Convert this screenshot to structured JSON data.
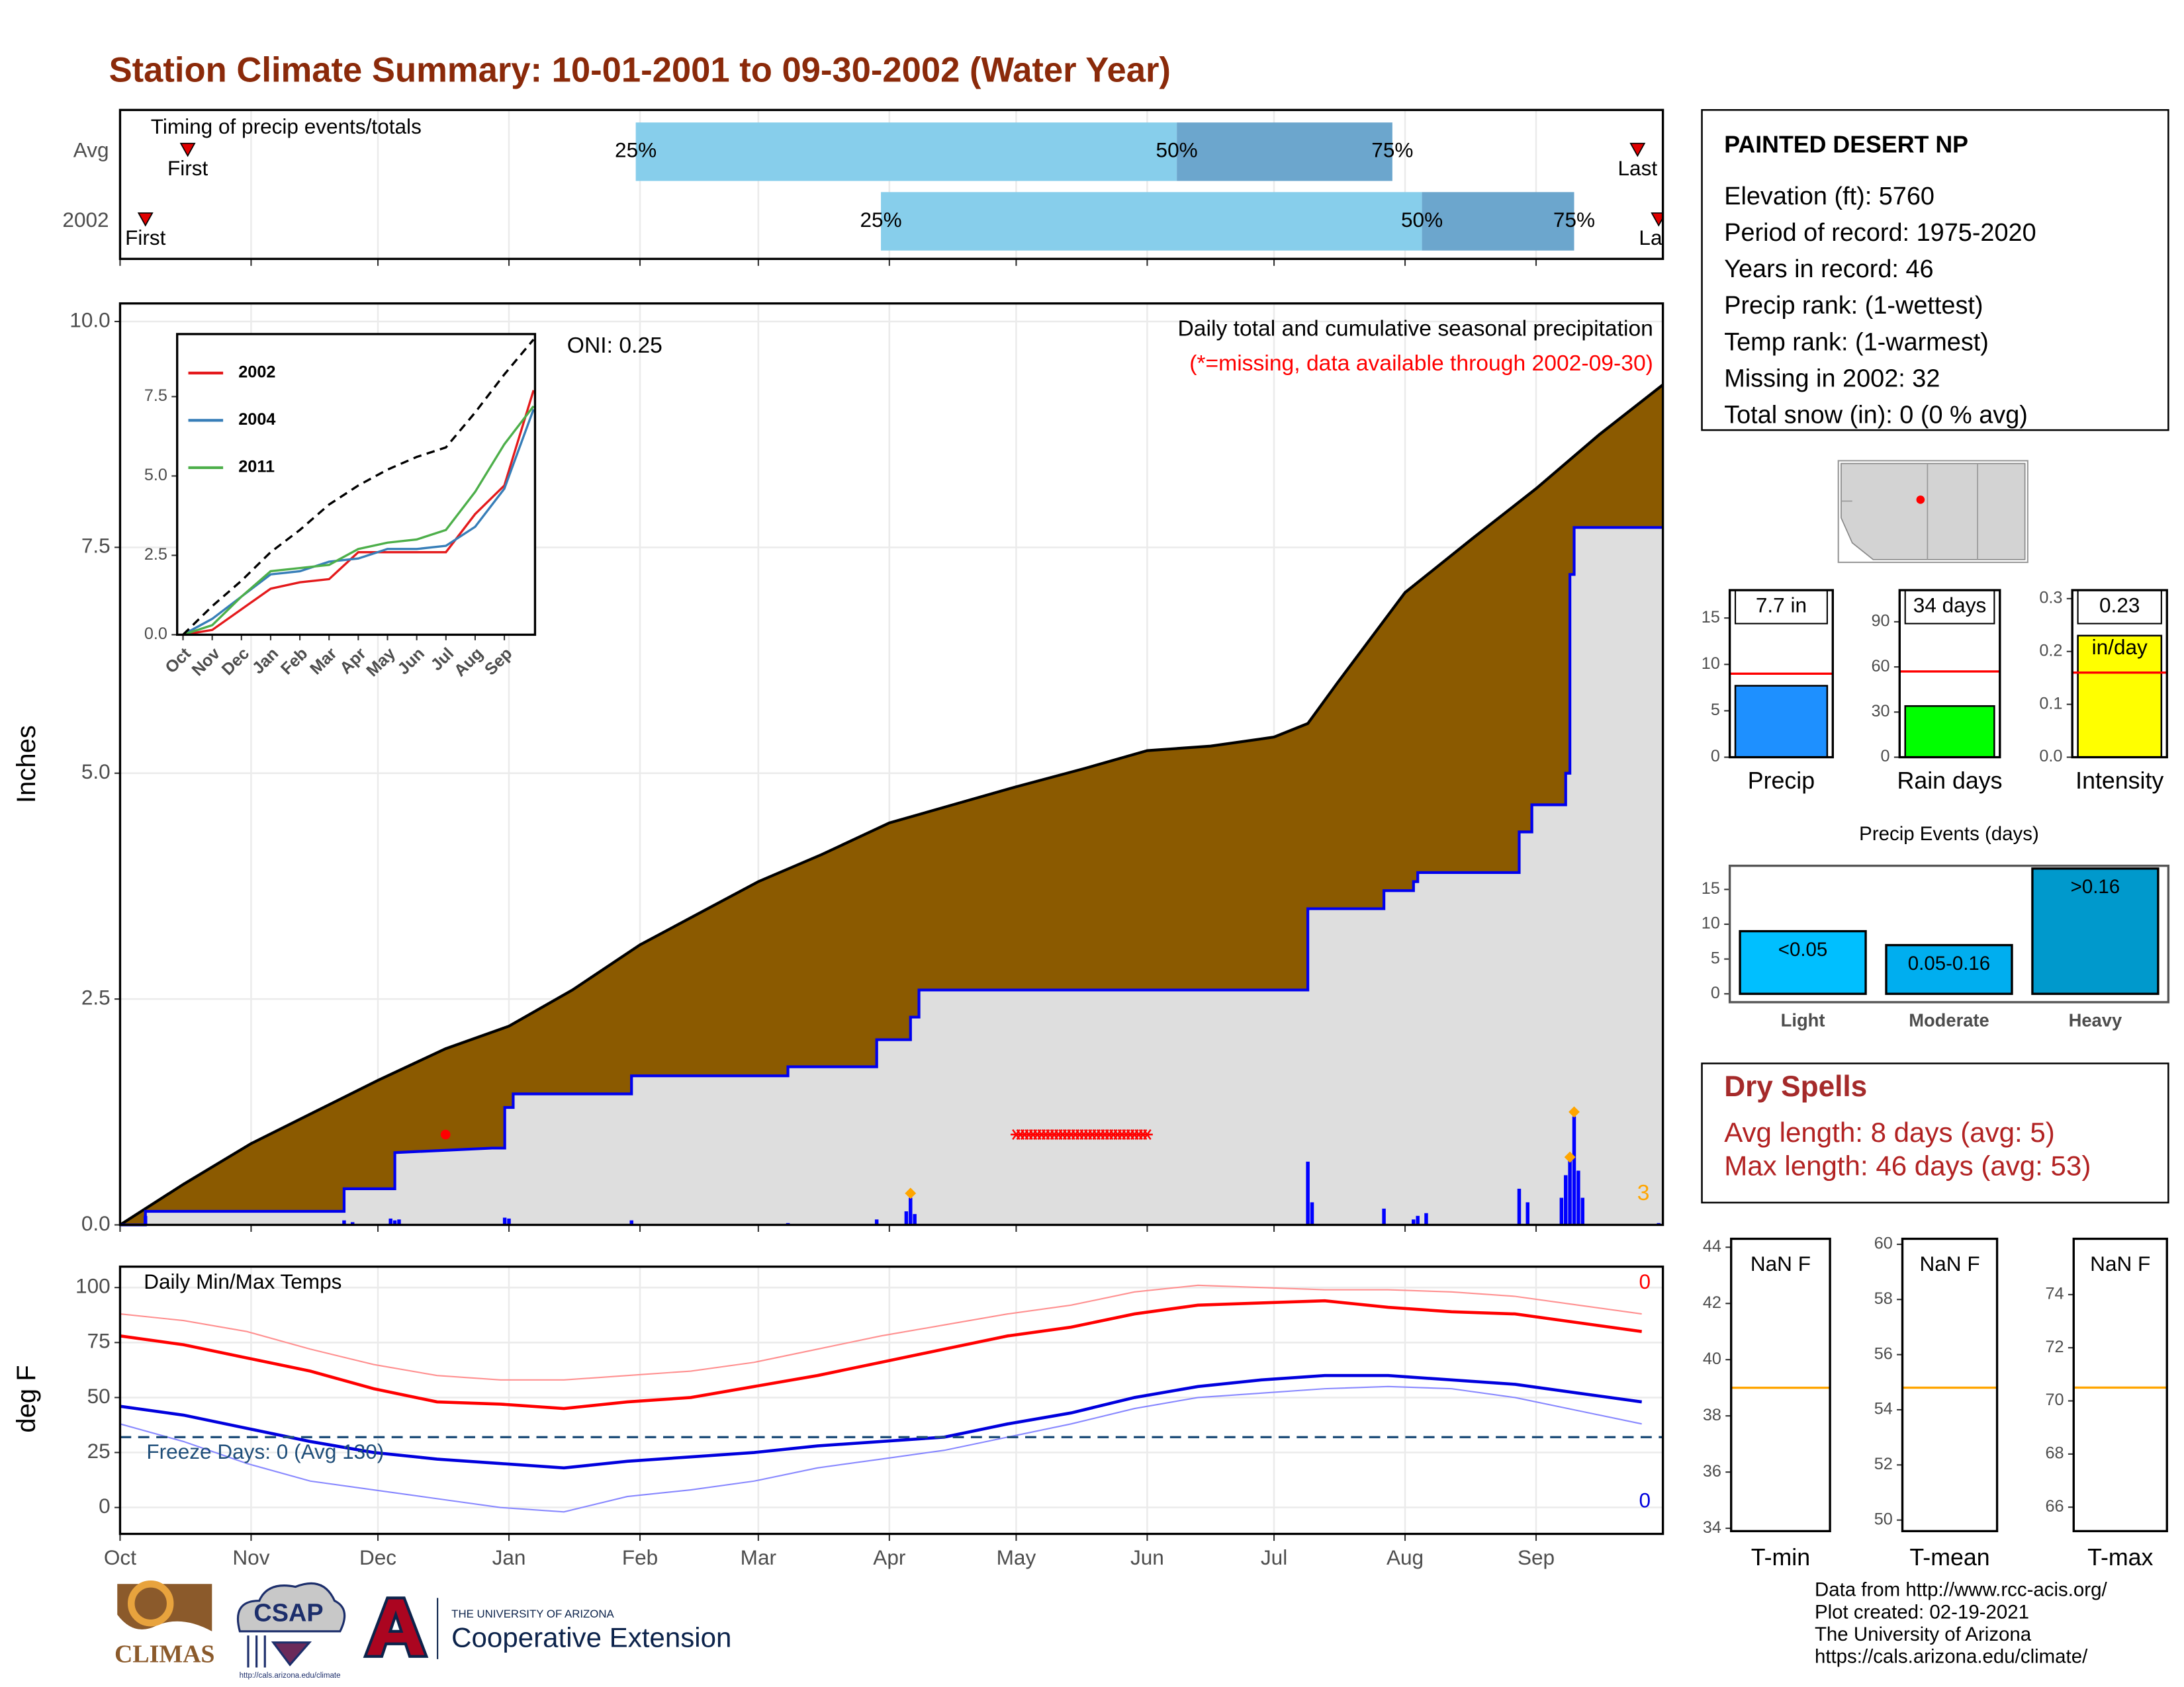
{
  "title": "Station Climate Summary: 10-01-2001 to 09-30-2002 (Water Year)",
  "station": {
    "name": "PAINTED DESERT NP",
    "lines": [
      "Elevation (ft): 5760",
      "Period of record: 1975-2020",
      "Years in record: 46",
      "Precip rank:  (1-wettest)",
      "Temp rank:  (1-warmest)",
      "Missing in 2002: 32",
      "Total snow (in): 0 (0 % avg)"
    ]
  },
  "dry_spells": {
    "title": "Dry Spells",
    "lines": [
      "Avg length: 8 days (avg: 5)",
      "Max length: 46 days (avg: 53)"
    ]
  },
  "footer": [
    "Data from http://www.rcc-acis.org/",
    "Plot created: 02-19-2021",
    "The University of Arizona",
    "https://cals.arizona.edu/climate/"
  ],
  "logos": {
    "climas": "CLIMAS",
    "csap": "CSAP",
    "csap_url": "http://cals.arizona.edu/climate",
    "university": "THE UNIVERSITY OF ARIZONA",
    "extension": "Cooperative Extension"
  },
  "chart_data": [
    {
      "type": "timing",
      "title": "Timing of precip events/totals",
      "xlim": [
        0,
        365
      ],
      "categories": [
        "Avg",
        "2002"
      ],
      "first": [
        16,
        6
      ],
      "last": [
        359,
        364
      ],
      "q25": [
        122,
        180
      ],
      "q50": [
        250,
        308
      ],
      "q75": [
        301,
        344
      ],
      "first_label": "First",
      "last_label": "Last",
      "q_labels": [
        "25%",
        "50%",
        "75%"
      ],
      "colors": {
        "early": "#87ceeb",
        "late": "#6ca6cd",
        "marker": "#e00000"
      }
    },
    {
      "type": "cumulative",
      "ylabel": "Inches",
      "annotation": "Daily total and cumulative seasonal precipitation",
      "note": "(*=missing, data available through 2002-09-30)",
      "note_color": "#ff0000",
      "oni": "ONI: 0.25",
      "corner_count": 3,
      "corner_color": "#ffa500",
      "xlim": [
        0,
        365
      ],
      "ylim": [
        0,
        10.2
      ],
      "yticks": [
        {
          "value": 0,
          "label": "0.0"
        },
        {
          "value": 2.5,
          "label": "2.5"
        },
        {
          "value": 5,
          "label": "5.0"
        },
        {
          "value": 7.5,
          "label": "7.5"
        },
        {
          "value": 10,
          "label": "10.0"
        }
      ],
      "grid": true,
      "avg": {
        "color": "#8b5a00",
        "x": [
          0,
          15,
          31,
          46,
          61,
          77,
          92,
          107,
          123,
          137,
          151,
          166,
          182,
          197,
          212,
          228,
          243,
          258,
          273,
          281,
          288,
          296,
          304,
          320,
          335,
          350,
          365
        ],
        "values": [
          0,
          0.45,
          0.9,
          1.25,
          1.6,
          1.95,
          2.2,
          2.6,
          3.1,
          3.45,
          3.8,
          4.1,
          4.45,
          4.65,
          4.85,
          5.05,
          5.25,
          5.3,
          5.4,
          5.55,
          6.0,
          6.5,
          7.0,
          7.6,
          8.15,
          8.75,
          9.3
        ]
      },
      "observed": {
        "color": "#0000ee",
        "fill": "#dedede",
        "x": [
          0,
          6,
          6,
          53,
          53,
          65,
          65,
          88,
          91,
          91,
          93,
          93,
          121,
          121,
          158,
          158,
          179,
          179,
          187,
          187,
          189,
          189,
          281,
          281,
          299,
          299,
          306,
          306,
          307,
          307,
          331,
          331,
          334,
          334,
          342,
          342,
          343,
          343,
          344,
          344,
          365
        ],
        "values": [
          0,
          0,
          0.15,
          0.15,
          0.4,
          0.4,
          0.8,
          0.85,
          0.85,
          1.3,
          1.3,
          1.45,
          1.45,
          1.65,
          1.65,
          1.75,
          1.75,
          2.05,
          2.05,
          2.3,
          2.3,
          2.6,
          2.6,
          3.5,
          3.5,
          3.7,
          3.7,
          3.8,
          3.8,
          3.9,
          3.9,
          4.35,
          4.35,
          4.65,
          4.65,
          5.0,
          5.0,
          7.2,
          7.2,
          7.72,
          7.72
        ]
      },
      "daily": {
        "color": "#0000ff",
        "x": [
          6,
          53,
          55,
          64,
          65,
          66,
          91,
          92,
          121,
          158,
          179,
          186,
          187,
          188,
          281,
          282,
          299,
          306,
          307,
          309,
          331,
          333,
          341,
          342,
          343,
          344,
          345,
          346,
          364
        ],
        "values": [
          0.1,
          0.05,
          0.03,
          0.07,
          0.05,
          0.06,
          0.08,
          0.07,
          0.05,
          0.02,
          0.06,
          0.15,
          0.3,
          0.12,
          0.7,
          0.25,
          0.18,
          0.06,
          0.1,
          0.13,
          0.4,
          0.25,
          0.3,
          0.55,
          0.75,
          1.2,
          0.6,
          0.3,
          0.02
        ]
      },
      "highlights": {
        "color": "#ffa500",
        "x": [
          187,
          343,
          344
        ],
        "values": [
          0.35,
          0.75,
          1.25
        ]
      },
      "missing": {
        "color": "#ff0000",
        "level": 1.0,
        "x": [
          212,
          213,
          214,
          215,
          216,
          217,
          218,
          219,
          220,
          221,
          222,
          223,
          224,
          225,
          226,
          227,
          228,
          229,
          230,
          231,
          232,
          233,
          234,
          235,
          236,
          237,
          238,
          239,
          240,
          241,
          242,
          243
        ]
      },
      "point": {
        "color": "#ff0000",
        "x": 77,
        "value": 1.0
      }
    },
    {
      "type": "line",
      "xlim": [
        -0.2,
        12.05
      ],
      "ylim": [
        0,
        9.47
      ],
      "x": [
        0,
        1,
        2,
        3,
        4,
        5,
        6,
        7,
        8,
        9,
        10,
        11,
        12
      ],
      "xticks": [
        {
          "value": 0,
          "label": "Oct"
        },
        {
          "value": 1,
          "label": "Nov"
        },
        {
          "value": 2,
          "label": "Dec"
        },
        {
          "value": 3,
          "label": "Jan"
        },
        {
          "value": 4,
          "label": "Feb"
        },
        {
          "value": 5,
          "label": "Mar"
        },
        {
          "value": 6,
          "label": "Apr"
        },
        {
          "value": 7,
          "label": "May"
        },
        {
          "value": 8,
          "label": "Jun"
        },
        {
          "value": 9,
          "label": "Jul"
        },
        {
          "value": 10,
          "label": "Aug"
        },
        {
          "value": 11,
          "label": "Sep"
        }
      ],
      "yticks": [
        {
          "value": 0,
          "label": "0.0"
        },
        {
          "value": 2.5,
          "label": "2.5"
        },
        {
          "value": 5,
          "label": "5.0"
        },
        {
          "value": 7.5,
          "label": "7.5"
        }
      ],
      "series": [
        {
          "name": "2002",
          "color": "#e41a1c",
          "values": [
            0,
            0.15,
            0.8,
            1.45,
            1.65,
            1.75,
            2.6,
            2.6,
            2.6,
            2.6,
            3.8,
            4.7,
            7.7
          ]
        },
        {
          "name": "2004",
          "color": "#377eb8",
          "values": [
            0,
            0.5,
            1.2,
            1.9,
            2.0,
            2.3,
            2.4,
            2.7,
            2.7,
            2.8,
            3.4,
            4.6,
            7.1
          ]
        },
        {
          "name": "2011",
          "color": "#4daf4a",
          "values": [
            0,
            0.3,
            1.2,
            2.0,
            2.1,
            2.2,
            2.7,
            2.9,
            3.0,
            3.3,
            4.5,
            6.0,
            7.2
          ]
        },
        {
          "color": "#000000",
          "dash": true,
          "values": [
            0,
            0.9,
            1.7,
            2.6,
            3.3,
            4.1,
            4.7,
            5.2,
            5.6,
            5.9,
            7.0,
            8.2,
            9.3
          ]
        }
      ]
    },
    {
      "type": "temperature",
      "title": "Daily Min/Max Temps",
      "ylabel": "deg F",
      "xlim": [
        0,
        365
      ],
      "ylim": [
        -12,
        109.5
      ],
      "xticks": [
        {
          "value": 0,
          "label": "Oct"
        },
        {
          "value": 31,
          "label": "Nov"
        },
        {
          "value": 61,
          "label": "Dec"
        },
        {
          "value": 92,
          "label": "Jan"
        },
        {
          "value": 123,
          "label": "Feb"
        },
        {
          "value": 151,
          "label": "Mar"
        },
        {
          "value": 182,
          "label": "Apr"
        },
        {
          "value": 212,
          "label": "May"
        },
        {
          "value": 243,
          "label": "Jun"
        },
        {
          "value": 273,
          "label": "Jul"
        },
        {
          "value": 304,
          "label": "Aug"
        },
        {
          "value": 335,
          "label": "Sep"
        }
      ],
      "yticks": [
        0,
        25,
        50,
        75,
        100
      ],
      "grid": true,
      "freeze_line": 32,
      "freeze_color": "#1f4e79",
      "freeze_label": "Freeze Days: 0 (Avg 130)",
      "max_count": 0,
      "min_count": 0,
      "x": [
        0,
        15,
        30,
        45,
        60,
        75,
        90,
        105,
        120,
        135,
        150,
        165,
        180,
        195,
        210,
        225,
        240,
        255,
        270,
        285,
        300,
        315,
        330,
        345,
        360
      ],
      "series": [
        {
          "color": "#ff9090",
          "width": 1,
          "values": [
            88,
            85,
            80,
            72,
            65,
            60,
            58,
            58,
            60,
            62,
            66,
            72,
            78,
            83,
            88,
            92,
            98,
            101,
            100,
            99,
            99,
            98,
            96,
            92,
            88
          ]
        },
        {
          "color": "#ff0000",
          "width": 2.2,
          "values": [
            78,
            74,
            68,
            62,
            54,
            48,
            47,
            45,
            48,
            50,
            55,
            60,
            66,
            72,
            78,
            82,
            88,
            92,
            93,
            94,
            91,
            89,
            88,
            84,
            80
          ]
        },
        {
          "color": "#0000dd",
          "width": 2.2,
          "values": [
            46,
            42,
            36,
            30,
            25,
            22,
            20,
            18,
            21,
            23,
            25,
            28,
            30,
            32,
            38,
            43,
            50,
            55,
            58,
            60,
            60,
            58,
            56,
            52,
            48
          ]
        },
        {
          "color": "#8888ff",
          "width": 1,
          "values": [
            38,
            30,
            20,
            12,
            8,
            4,
            0,
            -2,
            5,
            8,
            12,
            18,
            22,
            26,
            32,
            38,
            45,
            50,
            52,
            54,
            55,
            54,
            50,
            44,
            38
          ]
        }
      ]
    },
    {
      "type": "bar",
      "categories": [
        "Precip"
      ],
      "values": [
        7.7
      ],
      "value_labels": [
        "7.7 in"
      ],
      "color": "#1e90ff",
      "reference": 9,
      "reference_color": "#ff0000",
      "ylim": [
        0,
        18
      ],
      "yticks": [
        0,
        5,
        10,
        15
      ]
    },
    {
      "type": "bar",
      "categories": [
        "Rain days"
      ],
      "values": [
        34
      ],
      "value_labels": [
        "34 days"
      ],
      "color": "#00ff00",
      "reference": 57,
      "reference_color": "#ff0000",
      "ylim": [
        0,
        111
      ],
      "yticks": [
        0,
        30,
        60,
        90
      ]
    },
    {
      "type": "bar",
      "categories": [
        "Intensity"
      ],
      "values": [
        0.23
      ],
      "value_labels": [
        "0.23"
      ],
      "unit": "in/day",
      "color": "#ffff00",
      "reference": 0.16,
      "reference_color": "#ff0000",
      "ylim": [
        0,
        0.316
      ],
      "yticks": [
        {
          "value": 0,
          "label": "0.0"
        },
        {
          "value": 0.1,
          "label": "0.1"
        },
        {
          "value": 0.2,
          "label": "0.2"
        },
        {
          "value": 0.3,
          "label": "0.3"
        }
      ]
    },
    {
      "type": "events",
      "title": "Precip Events (days)",
      "categories": [
        "Light",
        "Moderate",
        "Heavy"
      ],
      "values": [
        9,
        7,
        18
      ],
      "class_labels": [
        "<0.05",
        "0.05-0.16",
        ">0.16"
      ],
      "colors": [
        "#00bfff",
        "#00aeef",
        "#0099cc"
      ],
      "ylim": [
        -1.2,
        18.4
      ],
      "yticks": [
        0,
        5,
        10,
        15
      ]
    },
    {
      "type": "reference",
      "categories": [
        "T-min"
      ],
      "values": [
        null
      ],
      "value_labels": [
        "NaN F"
      ],
      "reference": 39.0,
      "reference_color": "#ffa500",
      "ylim": [
        33.9,
        44.3
      ],
      "yticks": [
        34,
        36,
        38,
        40,
        42,
        44
      ]
    },
    {
      "type": "reference",
      "categories": [
        "T-mean"
      ],
      "values": [
        null
      ],
      "value_labels": [
        "NaN F"
      ],
      "reference": 54.8,
      "reference_color": "#ffa500",
      "ylim": [
        49.6,
        60.2
      ],
      "yticks": [
        50,
        52,
        54,
        56,
        58,
        60
      ]
    },
    {
      "type": "reference",
      "categories": [
        "T-max"
      ],
      "values": [
        null
      ],
      "value_labels": [
        "NaN F"
      ],
      "reference": 70.5,
      "reference_color": "#ffa500",
      "ylim": [
        65.1,
        76.1
      ],
      "yticks": [
        66,
        68,
        70,
        72,
        74
      ]
    }
  ]
}
